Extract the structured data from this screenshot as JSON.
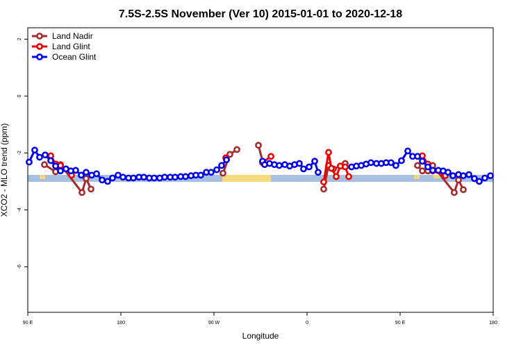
{
  "chart_data": {
    "type": "line",
    "title": "7.5S-2.5S November (Ver 10)   2015-01-01 to 2020-12-18",
    "x_label": "Longitude",
    "y_label": "XCO2 - MLO trend (ppm)",
    "xlim": [
      90,
      540
    ],
    "ylim": [
      -7.6,
      2.4
    ],
    "xticks": [
      {
        "value": 90,
        "label": "90 E"
      },
      180,
      {
        "value": 270,
        "label": "90 W"
      },
      {
        "value": 360,
        "label": "0"
      },
      {
        "value": 450,
        "label": "90 E"
      },
      {
        "value": 540,
        "label": "180"
      }
    ],
    "yticks": [
      -6,
      -4,
      -2,
      0,
      2
    ],
    "legend": "top-left",
    "series": [
      {
        "name": "Land Nadir",
        "color": "#a52a2a",
        "x": [
          106.1,
          116.9,
          121.6,
          142.4,
          146.4,
          151.1,
          null,
          278.7,
          285.4,
          292.2,
          null,
          313.0,
          317.0,
          null,
          376.1,
          380.8,
          385.5,
          392.2,
          396.9,
          null,
          466.8,
          471.5,
          476.8,
          481.5,
          502.3,
          506.4,
          511.1
        ],
        "values": [
          -2.41,
          -2.66,
          -2.41,
          -3.39,
          -2.9,
          -3.27,
          null,
          -2.71,
          -2.05,
          -1.88,
          null,
          -1.73,
          -2.29,
          null,
          -3.27,
          -2.44,
          -2.56,
          -2.46,
          -2.37,
          null,
          -2.44,
          -2.63,
          -2.63,
          -2.44,
          -3.39,
          -2.95,
          -3.29
        ]
      },
      {
        "name": "Land Glint",
        "color": "#ee0000",
        "x": [
          112.2,
          116.9,
          121.6,
          132.3,
          null,
          281.4,
          null,
          317.0,
          325.1,
          null,
          376.1,
          380.8,
          383.5,
          388.2,
          392.2,
          396.9,
          400.3,
          null,
          471.5,
          476.8,
          481.5,
          493.6
        ],
        "values": [
          -2.1,
          -2.39,
          -2.44,
          -2.78,
          null,
          -2.17,
          null,
          -2.34,
          -2.12,
          null,
          -3.02,
          -1.98,
          -2.54,
          -2.83,
          -2.46,
          -2.49,
          -2.83,
          null,
          -2.1,
          -2.39,
          -2.63,
          -2.8
        ]
      },
      {
        "name": "Ocean Glint",
        "color": "#0000ee",
        "x": [
          91.3,
          96.7,
          101.4,
          106.8,
          112.2,
          116.9,
          121.6,
          126.9,
          131.6,
          136.3,
          141.7,
          146.4,
          151.8,
          156.5,
          161.9,
          167.2,
          171.9,
          177.3,
          182.0,
          187.4,
          192.1,
          197.5,
          202.2,
          207.5,
          212.2,
          217.6,
          222.3,
          227.7,
          232.4,
          237.8,
          242.5,
          247.8,
          252.5,
          257.2,
          262.6,
          267.3,
          272.7,
          277.4,
          282.1,
          null,
          317.0,
          319.0,
          323.7,
          328.4,
          333.1,
          338.5,
          343.2,
          347.9,
          352.6,
          356.6,
          362.0,
          367.4,
          370.7,
          null,
          403.0,
          407.7,
          412.4,
          417.1,
          421.8,
          427.1,
          431.8,
          436.5,
          441.2,
          445.9,
          451.3,
          457.4,
          462.1,
          466.8,
          471.5,
          476.8,
          481.5,
          486.9,
          491.6,
          496.3,
          501.0,
          506.4,
          511.1,
          516.5,
          521.8,
          526.5,
          531.9,
          537.3
        ],
        "values": [
          -2.32,
          -1.9,
          -2.15,
          -2.07,
          -2.27,
          -2.46,
          -2.63,
          -2.56,
          -2.63,
          -2.61,
          -2.78,
          -2.68,
          -2.78,
          -2.73,
          -2.95,
          -3.0,
          -2.88,
          -2.78,
          -2.85,
          -2.88,
          -2.88,
          -2.85,
          -2.85,
          -2.88,
          -2.88,
          -2.88,
          -2.85,
          -2.85,
          -2.85,
          -2.83,
          -2.83,
          -2.8,
          -2.78,
          -2.78,
          -2.68,
          -2.68,
          -2.59,
          -2.44,
          -2.24,
          null,
          -2.29,
          -2.41,
          -2.37,
          -2.41,
          -2.44,
          -2.41,
          -2.46,
          -2.41,
          -2.37,
          -2.56,
          -2.49,
          -2.29,
          -2.68,
          null,
          -2.49,
          -2.46,
          -2.44,
          -2.39,
          -2.34,
          -2.37,
          -2.37,
          -2.34,
          -2.34,
          -2.44,
          -2.27,
          -1.93,
          -2.12,
          -2.12,
          -2.29,
          -2.49,
          -2.61,
          -2.61,
          -2.63,
          -2.68,
          -2.8,
          -2.76,
          -2.8,
          -2.76,
          -2.9,
          -3.0,
          -2.88,
          -2.8
        ]
      }
    ]
  }
}
